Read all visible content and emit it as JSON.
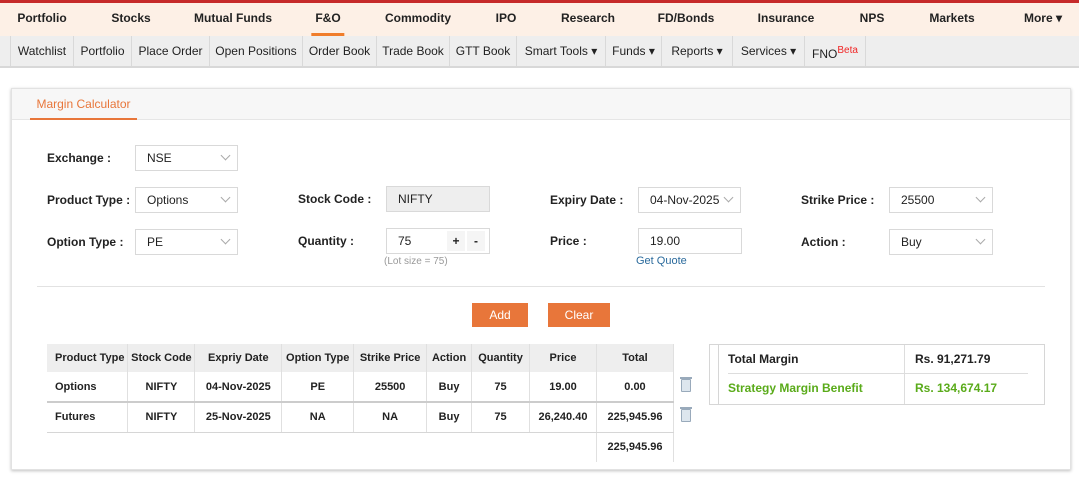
{
  "main_nav": {
    "items": [
      "Portfolio",
      "Stocks",
      "Mutual Funds",
      "F&O",
      "Commodity",
      "IPO",
      "Research",
      "FD/Bonds",
      "Insurance",
      "NPS",
      "Markets",
      "More ▾"
    ],
    "active": "F&O"
  },
  "sub_nav": {
    "items": [
      "Watchlist",
      "Portfolio",
      "Place Order",
      "Open Positions",
      "Order Book",
      "Trade Book",
      "GTT Book",
      "Smart Tools ▾",
      "Funds ▾",
      "Reports ▾",
      "Services ▾",
      "FNO"
    ],
    "fno_badge": "Beta"
  },
  "tab": "Margin Calculator",
  "form": {
    "exchange": {
      "label": "Exchange :",
      "value": "NSE"
    },
    "product_type": {
      "label": "Product Type :",
      "value": "Options"
    },
    "option_type": {
      "label": "Option Type :",
      "value": "PE"
    },
    "stock_code": {
      "label": "Stock Code :",
      "value": "NIFTY"
    },
    "quantity": {
      "label": "Quantity :",
      "value": "75",
      "plus": "+",
      "minus": "-",
      "hint": "(Lot size = 75)"
    },
    "expiry_date": {
      "label": "Expiry Date :",
      "value": "04-Nov-2025"
    },
    "price": {
      "label": "Price :",
      "value": "19.00",
      "get_quote": "Get Quote"
    },
    "strike_price": {
      "label": "Strike Price :",
      "value": "25500"
    },
    "action": {
      "label": "Action :",
      "value": "Buy"
    }
  },
  "buttons": {
    "add": "Add",
    "clear": "Clear"
  },
  "table": {
    "headers": [
      "Product Type",
      "Stock Code",
      "Expriy Date",
      "Option Type",
      "Strike Price",
      "Action",
      "Quantity",
      "Price",
      "Total"
    ],
    "rows": [
      [
        "Options",
        "NIFTY",
        "04-Nov-2025",
        "PE",
        "25500",
        "Buy",
        "75",
        "19.00",
        "0.00"
      ],
      [
        "Futures",
        "NIFTY",
        "25-Nov-2025",
        "NA",
        "NA",
        "Buy",
        "75",
        "26,240.40",
        "225,945.96"
      ]
    ],
    "grand_total": "225,945.96"
  },
  "summary": {
    "total_margin_label": "Total Margin",
    "total_margin": "Rs. 91,271.79",
    "benefit_label": "Strategy Margin Benefit",
    "benefit": "Rs. 134,674.17",
    "benefit_color": "#5aab1a"
  },
  "colors": {
    "accent": "#e8763a",
    "top_line": "#c62a2a"
  }
}
